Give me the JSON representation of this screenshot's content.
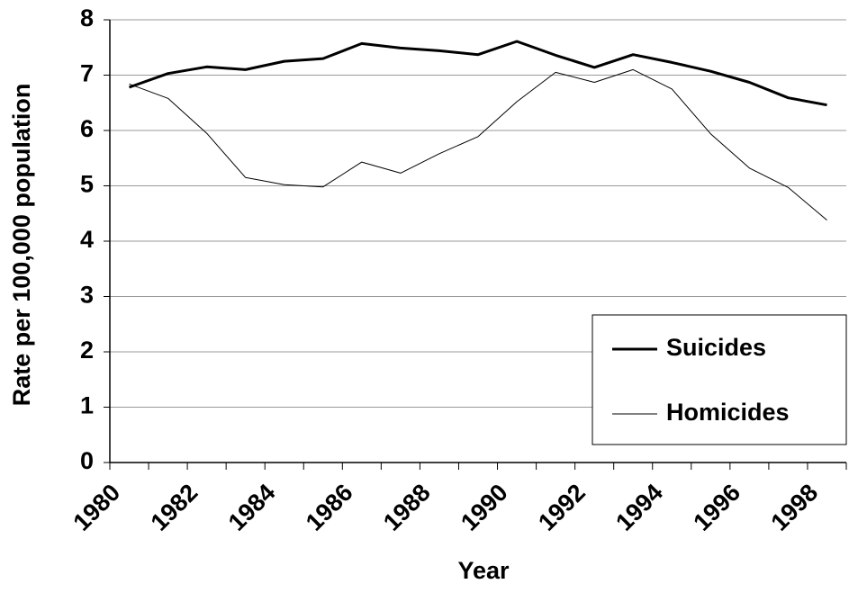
{
  "chart_data": {
    "type": "line",
    "x_label": "Year",
    "y_label": "Rate per 100,000 population",
    "categories": [
      "1980",
      null,
      "1982",
      null,
      "1984",
      null,
      "1986",
      null,
      "1988",
      null,
      "1990",
      null,
      "1992",
      null,
      "1994",
      null,
      "1996",
      null,
      "1998"
    ],
    "series": [
      {
        "name": "Suicides",
        "color": "#000000",
        "line_width": 3,
        "values": [
          6.78,
          7.03,
          7.15,
          7.1,
          7.25,
          7.3,
          7.57,
          7.49,
          7.44,
          7.37,
          7.61,
          7.36,
          7.14,
          7.37,
          7.23,
          7.07,
          6.87,
          6.59,
          6.46
        ]
      },
      {
        "name": "Homicides",
        "color": "#000000",
        "line_width": 1,
        "values": [
          6.84,
          6.58,
          5.95,
          5.15,
          5.02,
          4.98,
          5.43,
          5.23,
          5.58,
          5.89,
          6.52,
          7.05,
          6.87,
          7.1,
          6.75,
          5.94,
          5.32,
          4.97,
          4.38
        ]
      }
    ],
    "ylim": [
      0,
      8
    ],
    "yticks": [
      0,
      1,
      2,
      3,
      4,
      5,
      6,
      7,
      8
    ],
    "grid": true,
    "legend": "lower right"
  }
}
